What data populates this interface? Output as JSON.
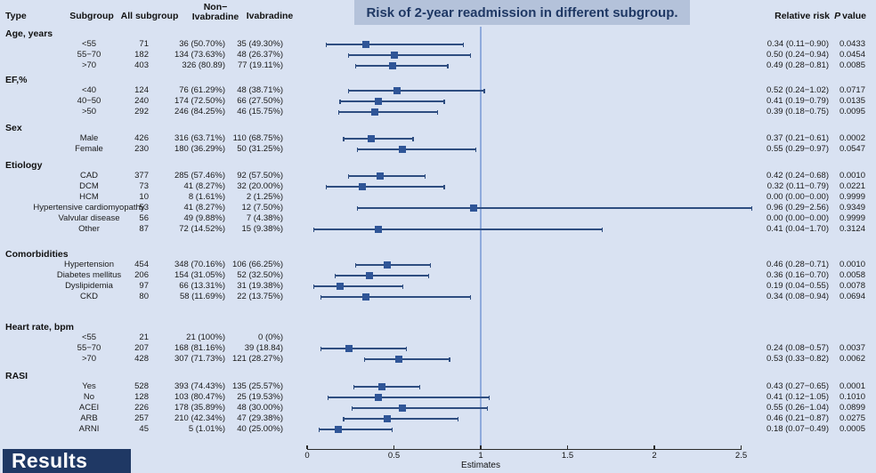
{
  "results_label": "Results",
  "colors": {
    "background": "#d9e2f2",
    "title_box": "#b4c2da",
    "title_text": "#1f3864",
    "marker": "#2f5597",
    "whisker": "#2e4d80",
    "refline": "#8faadc",
    "results_box": "#1f3864",
    "results_text": "#ffffff"
  },
  "chart_data": {
    "type": "forest",
    "title": "Risk of 2-year readmission in different subgroup.",
    "xlabel": "Estimates",
    "xlim": [
      0,
      2.5
    ],
    "xticks": [
      "0",
      "0.5",
      "1",
      "1.5",
      "2",
      "2.5"
    ],
    "refline": 1,
    "grid": false,
    "legend": false,
    "columns": {
      "type": "Type",
      "subgroup": "Subgroup",
      "all_subgroup": "All subgroup",
      "non_ivabradine": "Non−Ivabradine",
      "non_ivabradine_lines": [
        "Non−",
        "Ivabradine"
      ],
      "ivabradine": "Ivabradine",
      "relative_risk": "Relative risk",
      "p_value": "P value",
      "p_value_italic": "P",
      "p_value_rest": "value"
    },
    "sections": [
      {
        "name": "Age, years",
        "rows": [
          {
            "subgroup": "<55",
            "all_subgroup": "71",
            "non_ivabradine": "36 (50.70%)",
            "ivabradine": "35 (49.30%)",
            "estimate": 0.34,
            "ci_low": 0.11,
            "ci_high": 0.9,
            "relative_risk": "0.34 (0.11−0.90)",
            "p_value": "0.0433"
          },
          {
            "subgroup": "55−70",
            "all_subgroup": "182",
            "non_ivabradine": "134 (73.63%)",
            "ivabradine": "48 (26.37%)",
            "estimate": 0.5,
            "ci_low": 0.24,
            "ci_high": 0.94,
            "relative_risk": "0.50 (0.24−0.94)",
            "p_value": "0.0454"
          },
          {
            "subgroup": ">70",
            "all_subgroup": "403",
            "non_ivabradine": "326 (80.89)",
            "ivabradine": "77 (19.11%)",
            "estimate": 0.49,
            "ci_low": 0.28,
            "ci_high": 0.81,
            "relative_risk": "0.49 (0.28−0.81)",
            "p_value": "0.0085"
          }
        ]
      },
      {
        "name": "EF,%",
        "rows": [
          {
            "subgroup": "<40",
            "all_subgroup": "124",
            "non_ivabradine": "76 (61.29%)",
            "ivabradine": "48 (38.71%)",
            "estimate": 0.52,
            "ci_low": 0.24,
            "ci_high": 1.02,
            "relative_risk": "0.52 (0.24−1.02)",
            "p_value": "0.0717"
          },
          {
            "subgroup": "40−50",
            "all_subgroup": "240",
            "non_ivabradine": "174 (72.50%)",
            "ivabradine": "66 (27.50%)",
            "estimate": 0.41,
            "ci_low": 0.19,
            "ci_high": 0.79,
            "relative_risk": "0.41 (0.19−0.79)",
            "p_value": "0.0135"
          },
          {
            "subgroup": ">50",
            "all_subgroup": "292",
            "non_ivabradine": "246 (84.25%)",
            "ivabradine": "46 (15.75%)",
            "estimate": 0.39,
            "ci_low": 0.18,
            "ci_high": 0.75,
            "relative_risk": "0.39 (0.18−0.75)",
            "p_value": "0.0095"
          }
        ]
      },
      {
        "name": "Sex",
        "rows": [
          {
            "subgroup": "Male",
            "all_subgroup": "426",
            "non_ivabradine": "316 (63.71%)",
            "ivabradine": "110 (68.75%)",
            "estimate": 0.37,
            "ci_low": 0.21,
            "ci_high": 0.61,
            "relative_risk": "0.37 (0.21−0.61)",
            "p_value": "0.0002"
          },
          {
            "subgroup": "Female",
            "all_subgroup": "230",
            "non_ivabradine": "180 (36.29%)",
            "ivabradine": "50 (31.25%)",
            "estimate": 0.55,
            "ci_low": 0.29,
            "ci_high": 0.97,
            "relative_risk": "0.55 (0.29−0.97)",
            "p_value": "0.0547"
          }
        ]
      },
      {
        "name": "Etiology",
        "rows": [
          {
            "subgroup": "CAD",
            "all_subgroup": "377",
            "non_ivabradine": "285 (57.46%)",
            "ivabradine": "92 (57.50%)",
            "estimate": 0.42,
            "ci_low": 0.24,
            "ci_high": 0.68,
            "relative_risk": "0.42 (0.24−0.68)",
            "p_value": "0.0010"
          },
          {
            "subgroup": "DCM",
            "all_subgroup": "73",
            "non_ivabradine": "41 (8.27%)",
            "ivabradine": "32 (20.00%)",
            "estimate": 0.32,
            "ci_low": 0.11,
            "ci_high": 0.79,
            "relative_risk": "0.32 (0.11−0.79)",
            "p_value": "0.0221"
          },
          {
            "subgroup": "HCM",
            "all_subgroup": "10",
            "non_ivabradine": "8 (1.61%)",
            "ivabradine": "2 (1.25%)",
            "estimate": null,
            "ci_low": null,
            "ci_high": null,
            "relative_risk": "0.00 (0.00−0.00)",
            "p_value": "0.9999"
          },
          {
            "subgroup": "Hypertensive cardiomyopathy",
            "all_subgroup": "53",
            "non_ivabradine": "41 (8.27%)",
            "ivabradine": "12 (7.50%)",
            "estimate": 0.96,
            "ci_low": 0.29,
            "ci_high": 2.56,
            "relative_risk": "0.96 (0.29−2.56)",
            "p_value": "0.9349"
          },
          {
            "subgroup": "Valvular disease",
            "all_subgroup": "56",
            "non_ivabradine": "49 (9.88%)",
            "ivabradine": "7 (4.38%)",
            "estimate": null,
            "ci_low": null,
            "ci_high": null,
            "relative_risk": "0.00 (0.00−0.00)",
            "p_value": "0.9999"
          },
          {
            "subgroup": "Other",
            "all_subgroup": "87",
            "non_ivabradine": "72 (14.52%)",
            "ivabradine": "15 (9.38%)",
            "estimate": 0.41,
            "ci_low": 0.04,
            "ci_high": 1.7,
            "relative_risk": "0.41 (0.04−1.70)",
            "p_value": "0.3124"
          }
        ]
      },
      {
        "name": "Comorbidities",
        "rows": [
          {
            "subgroup": "Hypertension",
            "all_subgroup": "454",
            "non_ivabradine": "348 (70.16%)",
            "ivabradine": "106 (66.25%)",
            "estimate": 0.46,
            "ci_low": 0.28,
            "ci_high": 0.71,
            "relative_risk": "0.46 (0.28−0.71)",
            "p_value": "0.0010"
          },
          {
            "subgroup": "Diabetes mellitus",
            "all_subgroup": "206",
            "non_ivabradine": "154 (31.05%)",
            "ivabradine": "52 (32.50%)",
            "estimate": 0.36,
            "ci_low": 0.16,
            "ci_high": 0.7,
            "relative_risk": "0.36 (0.16−0.70)",
            "p_value": "0.0058"
          },
          {
            "subgroup": "Dyslipidemia",
            "all_subgroup": "97",
            "non_ivabradine": "66 (13.31%)",
            "ivabradine": "31 (19.38%)",
            "estimate": 0.19,
            "ci_low": 0.04,
            "ci_high": 0.55,
            "relative_risk": "0.19 (0.04−0.55)",
            "p_value": "0.0078"
          },
          {
            "subgroup": "CKD",
            "all_subgroup": "80",
            "non_ivabradine": "58 (11.69%)",
            "ivabradine": "22 (13.75%)",
            "estimate": 0.34,
            "ci_low": 0.08,
            "ci_high": 0.94,
            "relative_risk": "0.34 (0.08−0.94)",
            "p_value": "0.0694"
          }
        ]
      },
      {
        "name": "Heart rate, bpm",
        "rows": [
          {
            "subgroup": "<55",
            "all_subgroup": "21",
            "non_ivabradine": "21 (100%)",
            "ivabradine": "0 (0%)",
            "estimate": null,
            "ci_low": null,
            "ci_high": null,
            "relative_risk": "",
            "p_value": ""
          },
          {
            "subgroup": "55−70",
            "all_subgroup": "207",
            "non_ivabradine": "168 (81.16%)",
            "ivabradine": "39 (18.84)",
            "estimate": 0.24,
            "ci_low": 0.08,
            "ci_high": 0.57,
            "relative_risk": "0.24 (0.08−0.57)",
            "p_value": "0.0037"
          },
          {
            "subgroup": ">70",
            "all_subgroup": "428",
            "non_ivabradine": "307 (71.73%)",
            "ivabradine": "121 (28.27%)",
            "estimate": 0.53,
            "ci_low": 0.33,
            "ci_high": 0.82,
            "relative_risk": "0.53 (0.33−0.82)",
            "p_value": "0.0062"
          }
        ]
      },
      {
        "name": "RASI",
        "rows": [
          {
            "subgroup": "Yes",
            "all_subgroup": "528",
            "non_ivabradine": "393 (74.43%)",
            "ivabradine": "135 (25.57%)",
            "estimate": 0.43,
            "ci_low": 0.27,
            "ci_high": 0.65,
            "relative_risk": "0.43 (0.27−0.65)",
            "p_value": "0.0001"
          },
          {
            "subgroup": "No",
            "all_subgroup": "128",
            "non_ivabradine": "103 (80.47%)",
            "ivabradine": "25 (19.53%)",
            "estimate": 0.41,
            "ci_low": 0.12,
            "ci_high": 1.05,
            "relative_risk": "0.41 (0.12−1.05)",
            "p_value": "0.1010"
          },
          {
            "subgroup": "ACEI",
            "all_subgroup": "226",
            "non_ivabradine": "178 (35.89%)",
            "ivabradine": "48 (30.00%)",
            "estimate": 0.55,
            "ci_low": 0.26,
            "ci_high": 1.04,
            "relative_risk": "0.55 (0.26−1.04)",
            "p_value": "0.0899"
          },
          {
            "subgroup": "ARB",
            "all_subgroup": "257",
            "non_ivabradine": "210 (42.34%)",
            "ivabradine": "47 (29.38%)",
            "estimate": 0.46,
            "ci_low": 0.21,
            "ci_high": 0.87,
            "relative_risk": "0.46 (0.21−0.87)",
            "p_value": "0.0275"
          },
          {
            "subgroup": "ARNI",
            "all_subgroup": "45",
            "non_ivabradine": "5 (1.01%)",
            "ivabradine": "40 (25.00%)",
            "estimate": 0.18,
            "ci_low": 0.07,
            "ci_high": 0.49,
            "relative_risk": "0.18 (0.07−0.49)",
            "p_value": "0.0005"
          }
        ]
      }
    ]
  }
}
